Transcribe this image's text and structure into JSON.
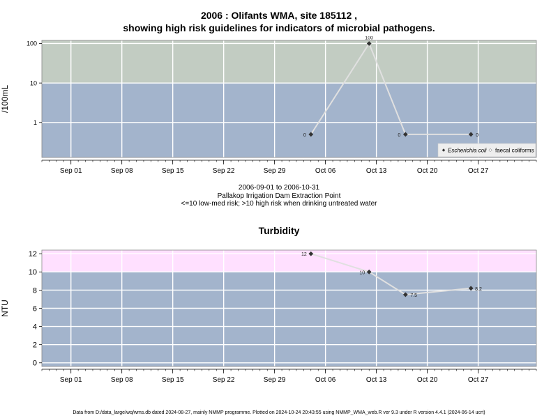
{
  "page": {
    "title_line1": "2006 : Olifants WMA, site 185112 ,",
    "title_line2": "showing high risk guidelines for indicators of microbial pathogens.",
    "date_range": "2006-09-01 to 2006-10-31",
    "site_name": "Pallakop Irrigation Dam Extraction Point",
    "risk_note": "<=10 low-med risk; >10 high risk when drinking untreated water",
    "turbidity_title": "Turbidity",
    "footnote": "Data from D:/data_large/wq/wms.db dated 2024-08-27, mainly NMMP programme. Plotted on 2024-10-24 20:43:55 using NMMP_WMA_web.R ver 9.3 under R version 4.4.1 (2024-06-14 ucrt)"
  },
  "colors": {
    "panel_low": "#a3b4cc",
    "micro_high": "#c2ccc2",
    "turb_high": "#ffe0ff",
    "grid": "#ffffff",
    "line": "#e0e0e0",
    "point": "#333333"
  },
  "chart_data": [
    {
      "type": "line",
      "ylabel": "/100mL",
      "yscale": "log",
      "ylim": [
        0.13,
        120
      ],
      "yticks": [
        1,
        10,
        100
      ],
      "ytick_labels": [
        "1",
        "10",
        "100"
      ],
      "high_risk_threshold": 10,
      "xlim": [
        "2006-08-28",
        "2006-11-04"
      ],
      "xticks": [
        "2006-09-01",
        "2006-09-08",
        "2006-09-15",
        "2006-09-22",
        "2006-09-29",
        "2006-10-06",
        "2006-10-13",
        "2006-10-20",
        "2006-10-27"
      ],
      "xtick_labels": [
        "Sep 01",
        "Sep 08",
        "Sep 15",
        "Sep 22",
        "Sep 29",
        "Oct 06",
        "Oct 13",
        "Oct 20",
        "Oct 27"
      ],
      "legend": {
        "position": "bottom-right",
        "entries": [
          "Escherichia coli",
          "faecal coliforms"
        ]
      },
      "series": [
        {
          "name": "Escherichia coli",
          "x": [
            "2006-10-04",
            "2006-10-12",
            "2006-10-17",
            "2006-10-26"
          ],
          "y": [
            0.5,
            100,
            0.5,
            0.5
          ],
          "labels": [
            "0",
            "100",
            "0",
            "0"
          ]
        }
      ]
    },
    {
      "type": "line",
      "ylabel": "NTU",
      "ylim": [
        -0.4,
        12.4
      ],
      "yticks": [
        0,
        2,
        4,
        6,
        8,
        10,
        12
      ],
      "ytick_labels": [
        "0",
        "2",
        "4",
        "6",
        "8",
        "10",
        "12"
      ],
      "high_risk_threshold": 10,
      "xlim": [
        "2006-08-28",
        "2006-11-04"
      ],
      "xticks": [
        "2006-09-01",
        "2006-09-08",
        "2006-09-15",
        "2006-09-22",
        "2006-09-29",
        "2006-10-06",
        "2006-10-13",
        "2006-10-20",
        "2006-10-27"
      ],
      "xtick_labels": [
        "Sep 01",
        "Sep 08",
        "Sep 15",
        "Sep 22",
        "Sep 29",
        "Oct 06",
        "Oct 13",
        "Oct 20",
        "Oct 27"
      ],
      "series": [
        {
          "x": [
            "2006-10-04",
            "2006-10-12",
            "2006-10-17",
            "2006-10-26"
          ],
          "y": [
            12,
            10,
            7.5,
            8.2
          ],
          "labels": [
            "12",
            "10",
            "7.5",
            "8.2"
          ]
        }
      ]
    }
  ]
}
